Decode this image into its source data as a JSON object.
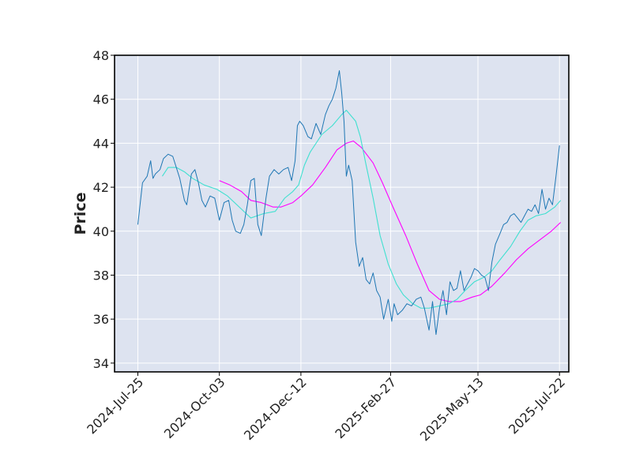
{
  "chart_data": {
    "type": "line",
    "title": "",
    "xlabel": "",
    "ylabel": "Price",
    "x_tick_labels": [
      "2024-Jul-25",
      "2024-Oct-03",
      "2024-Dec-12",
      "2025-Feb-27",
      "2025-May-13",
      "2025-Jul-22"
    ],
    "y_ticks": [
      34,
      36,
      38,
      40,
      42,
      44,
      46,
      48
    ],
    "ylim": [
      33.6,
      48
    ],
    "xlim": [
      "2024-Jul-05",
      "2025-Jul-30"
    ],
    "grid": true,
    "legend": "none",
    "colors": {
      "background": "#dde3f0",
      "grid": "#ffffff",
      "price": "#1f77b4",
      "ma_short": "#40e0d0",
      "ma_long": "#ff00ff",
      "axes": "#000000"
    },
    "series": [
      {
        "role": "price",
        "points": [
          [
            "2024-07-25",
            40.3
          ],
          [
            "2024-07-29",
            42.2
          ],
          [
            "2024-08-02",
            42.5
          ],
          [
            "2024-08-05",
            43.2
          ],
          [
            "2024-08-07",
            42.4
          ],
          [
            "2024-08-09",
            42.6
          ],
          [
            "2024-08-13",
            42.8
          ],
          [
            "2024-08-16",
            43.3
          ],
          [
            "2024-08-20",
            43.5
          ],
          [
            "2024-08-24",
            43.4
          ],
          [
            "2024-08-27",
            42.9
          ],
          [
            "2024-08-30",
            42.4
          ],
          [
            "2024-09-03",
            41.4
          ],
          [
            "2024-09-05",
            41.2
          ],
          [
            "2024-09-09",
            42.6
          ],
          [
            "2024-09-12",
            42.8
          ],
          [
            "2024-09-15",
            42.2
          ],
          [
            "2024-09-18",
            41.4
          ],
          [
            "2024-09-21",
            41.1
          ],
          [
            "2024-09-25",
            41.6
          ],
          [
            "2024-09-29",
            41.5
          ],
          [
            "2024-10-03",
            40.5
          ],
          [
            "2024-10-07",
            41.3
          ],
          [
            "2024-10-11",
            41.4
          ],
          [
            "2024-10-14",
            40.5
          ],
          [
            "2024-10-17",
            40.0
          ],
          [
            "2024-10-21",
            39.9
          ],
          [
            "2024-10-24",
            40.3
          ],
          [
            "2024-10-27",
            41.2
          ],
          [
            "2024-10-30",
            42.3
          ],
          [
            "2024-11-02",
            42.4
          ],
          [
            "2024-11-05",
            40.3
          ],
          [
            "2024-11-08",
            39.8
          ],
          [
            "2024-11-12",
            41.5
          ],
          [
            "2024-11-15",
            42.5
          ],
          [
            "2024-11-19",
            42.8
          ],
          [
            "2024-11-23",
            42.6
          ],
          [
            "2024-11-27",
            42.8
          ],
          [
            "2024-12-01",
            42.9
          ],
          [
            "2024-12-04",
            42.3
          ],
          [
            "2024-12-07",
            43.2
          ],
          [
            "2024-12-09",
            44.8
          ],
          [
            "2024-12-11",
            45.0
          ],
          [
            "2024-12-14",
            44.8
          ],
          [
            "2024-12-18",
            44.3
          ],
          [
            "2024-12-21",
            44.2
          ],
          [
            "2024-12-25",
            44.9
          ],
          [
            "2024-12-29",
            44.4
          ],
          [
            "2025-01-02",
            45.3
          ],
          [
            "2025-01-05",
            45.7
          ],
          [
            "2025-01-08",
            46.0
          ],
          [
            "2025-01-11",
            46.5
          ],
          [
            "2025-01-14",
            47.3
          ],
          [
            "2025-01-16",
            46.3
          ],
          [
            "2025-01-18",
            45.0
          ],
          [
            "2025-01-20",
            42.5
          ],
          [
            "2025-01-22",
            43.0
          ],
          [
            "2025-01-25",
            42.3
          ],
          [
            "2025-01-28",
            39.5
          ],
          [
            "2025-01-31",
            38.4
          ],
          [
            "2025-02-03",
            38.8
          ],
          [
            "2025-02-06",
            37.8
          ],
          [
            "2025-02-09",
            37.6
          ],
          [
            "2025-02-12",
            38.1
          ],
          [
            "2025-02-15",
            37.3
          ],
          [
            "2025-02-18",
            37.0
          ],
          [
            "2025-02-21",
            36.0
          ],
          [
            "2025-02-25",
            36.9
          ],
          [
            "2025-02-28",
            35.9
          ],
          [
            "2025-03-02",
            36.7
          ],
          [
            "2025-03-05",
            36.2
          ],
          [
            "2025-03-09",
            36.4
          ],
          [
            "2025-03-13",
            36.7
          ],
          [
            "2025-03-17",
            36.6
          ],
          [
            "2025-03-21",
            36.9
          ],
          [
            "2025-03-25",
            37.0
          ],
          [
            "2025-03-28",
            36.5
          ],
          [
            "2025-04-01",
            35.5
          ],
          [
            "2025-04-04",
            36.8
          ],
          [
            "2025-04-07",
            35.3
          ],
          [
            "2025-04-10",
            36.5
          ],
          [
            "2025-04-13",
            37.3
          ],
          [
            "2025-04-16",
            36.2
          ],
          [
            "2025-04-19",
            37.7
          ],
          [
            "2025-04-22",
            37.3
          ],
          [
            "2025-04-25",
            37.4
          ],
          [
            "2025-04-28",
            38.2
          ],
          [
            "2025-05-01",
            37.3
          ],
          [
            "2025-05-04",
            37.6
          ],
          [
            "2025-05-07",
            37.9
          ],
          [
            "2025-05-10",
            38.3
          ],
          [
            "2025-05-13",
            38.2
          ],
          [
            "2025-05-16",
            38.0
          ],
          [
            "2025-05-19",
            37.9
          ],
          [
            "2025-05-22",
            37.3
          ],
          [
            "2025-05-25",
            38.6
          ],
          [
            "2025-05-28",
            39.4
          ],
          [
            "2025-06-01",
            39.9
          ],
          [
            "2025-06-04",
            40.3
          ],
          [
            "2025-06-07",
            40.4
          ],
          [
            "2025-06-10",
            40.7
          ],
          [
            "2025-06-13",
            40.8
          ],
          [
            "2025-06-16",
            40.6
          ],
          [
            "2025-06-19",
            40.4
          ],
          [
            "2025-06-22",
            40.7
          ],
          [
            "2025-06-25",
            41.0
          ],
          [
            "2025-06-28",
            40.9
          ],
          [
            "2025-07-01",
            41.2
          ],
          [
            "2025-07-04",
            40.8
          ],
          [
            "2025-07-07",
            41.9
          ],
          [
            "2025-07-10",
            41.0
          ],
          [
            "2025-07-13",
            41.5
          ],
          [
            "2025-07-16",
            41.2
          ],
          [
            "2025-07-19",
            42.5
          ],
          [
            "2025-07-22",
            43.9
          ]
        ]
      },
      {
        "role": "moving_average_short",
        "points": [
          [
            "2024-08-15",
            42.5
          ],
          [
            "2024-08-20",
            42.9
          ],
          [
            "2024-08-27",
            42.9
          ],
          [
            "2024-09-03",
            42.7
          ],
          [
            "2024-09-10",
            42.4
          ],
          [
            "2024-09-20",
            42.1
          ],
          [
            "2024-10-01",
            41.9
          ],
          [
            "2024-10-10",
            41.6
          ],
          [
            "2024-10-20",
            41.1
          ],
          [
            "2024-10-30",
            40.6
          ],
          [
            "2024-11-10",
            40.8
          ],
          [
            "2024-11-20",
            40.9
          ],
          [
            "2024-11-28",
            41.5
          ],
          [
            "2024-12-05",
            41.8
          ],
          [
            "2024-12-10",
            42.1
          ],
          [
            "2024-12-15",
            43.0
          ],
          [
            "2024-12-20",
            43.6
          ],
          [
            "2024-12-30",
            44.4
          ],
          [
            "2025-01-08",
            44.8
          ],
          [
            "2025-01-16",
            45.3
          ],
          [
            "2025-01-20",
            45.5
          ],
          [
            "2025-01-28",
            45.0
          ],
          [
            "2025-02-01",
            44.3
          ],
          [
            "2025-02-06",
            43.0
          ],
          [
            "2025-02-12",
            41.5
          ],
          [
            "2025-02-18",
            39.8
          ],
          [
            "2025-02-25",
            38.5
          ],
          [
            "2025-03-04",
            37.6
          ],
          [
            "2025-03-10",
            37.1
          ],
          [
            "2025-03-18",
            36.7
          ],
          [
            "2025-03-25",
            36.5
          ],
          [
            "2025-04-01",
            36.5
          ],
          [
            "2025-04-10",
            36.6
          ],
          [
            "2025-04-18",
            36.7
          ],
          [
            "2025-04-25",
            36.9
          ],
          [
            "2025-05-02",
            37.3
          ],
          [
            "2025-05-10",
            37.7
          ],
          [
            "2025-05-18",
            37.9
          ],
          [
            "2025-05-25",
            38.2
          ],
          [
            "2025-06-01",
            38.7
          ],
          [
            "2025-06-10",
            39.3
          ],
          [
            "2025-06-18",
            40.0
          ],
          [
            "2025-06-25",
            40.5
          ],
          [
            "2025-07-02",
            40.7
          ],
          [
            "2025-07-10",
            40.8
          ],
          [
            "2025-07-18",
            41.1
          ],
          [
            "2025-07-23",
            41.4
          ]
        ]
      },
      {
        "role": "moving_average_long",
        "points": [
          [
            "2024-10-03",
            42.3
          ],
          [
            "2024-10-12",
            42.1
          ],
          [
            "2024-10-22",
            41.8
          ],
          [
            "2024-10-30",
            41.4
          ],
          [
            "2024-11-08",
            41.3
          ],
          [
            "2024-11-18",
            41.1
          ],
          [
            "2024-11-25",
            41.1
          ],
          [
            "2024-12-05",
            41.3
          ],
          [
            "2024-12-12",
            41.6
          ],
          [
            "2024-12-22",
            42.1
          ],
          [
            "2025-01-02",
            42.9
          ],
          [
            "2025-01-12",
            43.7
          ],
          [
            "2025-01-20",
            44.0
          ],
          [
            "2025-01-26",
            44.1
          ],
          [
            "2025-02-02",
            43.8
          ],
          [
            "2025-02-12",
            43.1
          ],
          [
            "2025-02-20",
            42.2
          ],
          [
            "2025-03-01",
            41.1
          ],
          [
            "2025-03-12",
            39.8
          ],
          [
            "2025-03-22",
            38.5
          ],
          [
            "2025-04-01",
            37.3
          ],
          [
            "2025-04-10",
            36.9
          ],
          [
            "2025-04-18",
            36.8
          ],
          [
            "2025-04-28",
            36.8
          ],
          [
            "2025-05-08",
            37.0
          ],
          [
            "2025-05-15",
            37.1
          ],
          [
            "2025-05-25",
            37.5
          ],
          [
            "2025-06-05",
            38.1
          ],
          [
            "2025-06-15",
            38.7
          ],
          [
            "2025-06-25",
            39.2
          ],
          [
            "2025-07-05",
            39.6
          ],
          [
            "2025-07-15",
            40.0
          ],
          [
            "2025-07-23",
            40.4
          ]
        ]
      }
    ]
  }
}
